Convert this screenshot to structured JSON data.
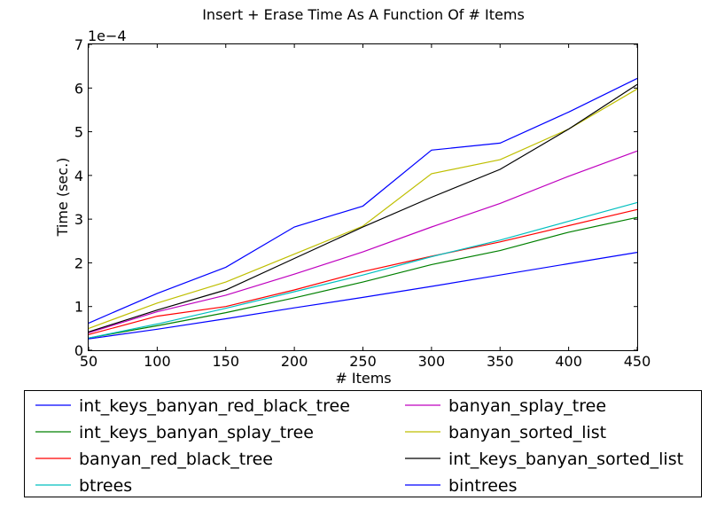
{
  "chart_data": {
    "type": "line",
    "title": "Insert + Erase Time As A Function Of # Items",
    "xlabel": "# Items",
    "ylabel": "Time (sec.)",
    "y_multiplier_label": "1e−4",
    "xlim": [
      50,
      450
    ],
    "ylim": [
      0,
      7
    ],
    "xticks": [
      "50",
      "100",
      "150",
      "200",
      "250",
      "300",
      "350",
      "400",
      "450"
    ],
    "yticks": [
      "0",
      "1",
      "2",
      "3",
      "4",
      "5",
      "6",
      "7"
    ],
    "grid": false,
    "legend_position": "below plot, two columns",
    "x": [
      50,
      100,
      150,
      200,
      250,
      300,
      350,
      400,
      450
    ],
    "series": [
      {
        "name": "int_keys_banyan_red_black_tree",
        "color": "#0000ff",
        "values": [
          0.62,
          1.3,
          1.9,
          2.82,
          3.3,
          4.58,
          4.74,
          5.45,
          6.22
        ]
      },
      {
        "name": "int_keys_banyan_splay_tree",
        "color": "#008000",
        "values": [
          0.28,
          0.56,
          0.86,
          1.2,
          1.56,
          1.96,
          2.28,
          2.7,
          3.04
        ]
      },
      {
        "name": "banyan_red_black_tree",
        "color": "#ff0000",
        "values": [
          0.36,
          0.78,
          1.0,
          1.38,
          1.8,
          2.15,
          2.48,
          2.85,
          3.22
        ]
      },
      {
        "name": "btrees",
        "color": "#00bfbf",
        "values": [
          0.28,
          0.6,
          0.96,
          1.34,
          1.72,
          2.14,
          2.52,
          2.95,
          3.38
        ]
      },
      {
        "name": "banyan_splay_tree",
        "color": "#bf00bf",
        "values": [
          0.4,
          0.88,
          1.26,
          1.74,
          2.25,
          2.82,
          3.36,
          3.98,
          4.56
        ]
      },
      {
        "name": "banyan_sorted_list",
        "color": "#bfbf00",
        "values": [
          0.5,
          1.08,
          1.56,
          2.2,
          2.84,
          4.04,
          4.36,
          5.06,
          5.98
        ]
      },
      {
        "name": "int_keys_banyan_sorted_list",
        "color": "#000000",
        "values": [
          0.42,
          0.92,
          1.38,
          2.1,
          2.82,
          3.5,
          4.14,
          5.06,
          6.08
        ]
      },
      {
        "name": "bintrees",
        "color": "#0000ff",
        "values": [
          0.26,
          0.48,
          0.72,
          0.97,
          1.21,
          1.46,
          1.72,
          1.98,
          2.24
        ]
      }
    ]
  }
}
